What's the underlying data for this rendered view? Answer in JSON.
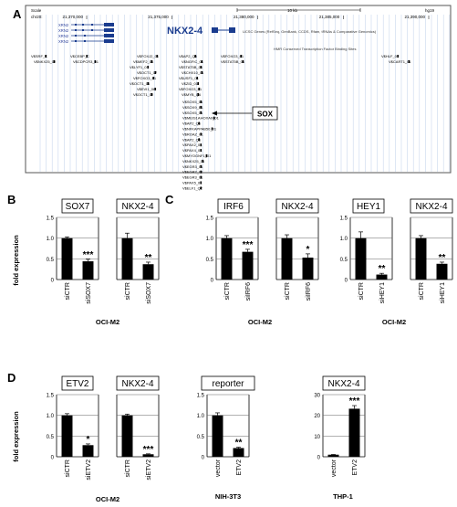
{
  "panel_a": {
    "letter": "A",
    "track": {
      "scale_label": "Scale",
      "scale_value": "10 kb",
      "assembly": "hg19",
      "chrom": "chr20:",
      "coords": [
        "21,370,000",
        "21,375,000",
        "21,380,000",
        "21,385,000",
        "21,390,000"
      ],
      "coord_values": [
        21370000,
        21375000,
        21380000,
        21385000,
        21390000
      ],
      "xrnr_labels": [
        "XRN2",
        "XRN2",
        "XRN2",
        "XRN2"
      ],
      "gene_label": "NKX2-4",
      "genes_track": "UCSC Genes (RefSeq, GenBank, CCDS, Rfam, tRNAs & Comparative Genomics)",
      "tfbs_track": "HMR Conserved Transcription Factor Binding Sites",
      "sox_label": "SOX",
      "gene_color": "#1a3c8f"
    },
    "tfbs": {
      "left": [
        "V$SRF_C",
        "V$NKX25_02"
      ],
      "left2": [
        "V$CEBP_C",
        "V$CDPCR3_01"
      ],
      "stack": [
        "V$FOXJ2_01",
        "V$MEF2_04",
        "V$LYF1_01",
        "V$OCT1_07",
        "V$FOXO3_01",
        "V$OCT1_04",
        "V$EVI1_06",
        "V$OCT1_02"
      ],
      "mid": [
        "V$AP2_Q6",
        "V$NGFIC_01",
        "V$STAT5B_01",
        "V$CHX10_01",
        "V$USF1_01",
        "V$ZID_01",
        "V$FOXO3_01",
        "V$MYB_Q6"
      ],
      "mid2": [
        "V$FOXO3_01",
        "V$STAT5B_01"
      ],
      "col": [
        "V$SOX5_01",
        "V$SOX9_B1",
        "V$SOX5_01",
        "V$MEIS1AHOXA9_01",
        "V$AP2_Q6",
        "V$NFKAPPAB50_01",
        "V$ROAZ_01",
        "V$AP2_Q6",
        "V$PAX2_01",
        "V$PAX4_01",
        "V$MYOGNF1_01",
        "V$NKX25_01",
        "V$EGR3_01",
        "V$EGR2_01",
        "V$EGR3_01",
        "V$PAX5_01",
        "V$ELF1_Q2"
      ],
      "right": [
        "V$HLF_01",
        "V$CART1_01"
      ]
    }
  },
  "panels": {
    "B": {
      "letter": "B",
      "xlabel": "OCI-M2",
      "ylabel": "fold expression"
    },
    "C": {
      "letter": "C",
      "xlabel": "OCI-M2"
    },
    "C2": {
      "xlabel": "OCI-M2"
    },
    "D": {
      "letter": "D",
      "xlabel": "OCI-M2",
      "ylabel": "fold expression"
    },
    "D2": {
      "xlabel": "NIH-3T3"
    },
    "D3": {
      "xlabel": "THP-1"
    }
  },
  "chart_data": [
    {
      "type": "bar",
      "panel": "B",
      "title": "SOX7",
      "ylabel": "fold expression",
      "categories": [
        "siCTR",
        "siSOX7"
      ],
      "values": [
        1.0,
        0.44
      ],
      "errors": [
        0.03,
        0.05
      ],
      "significance": [
        "",
        "***"
      ],
      "yticks": [
        "0",
        "0.5",
        "1.0",
        "1.5"
      ],
      "ylim": [
        0,
        1.5
      ]
    },
    {
      "type": "bar",
      "panel": "B",
      "title": "NKX2-4",
      "categories": [
        "siCTR",
        "siSOX7"
      ],
      "values": [
        1.0,
        0.37
      ],
      "errors": [
        0.12,
        0.05
      ],
      "significance": [
        "",
        "**"
      ],
      "ylim": [
        0,
        1.5
      ]
    },
    {
      "type": "bar",
      "panel": "C",
      "title": "IRF6",
      "categories": [
        "siCTR",
        "siIRF6"
      ],
      "values": [
        1.0,
        0.67
      ],
      "errors": [
        0.06,
        0.06
      ],
      "significance": [
        "",
        "***"
      ],
      "yticks": [
        "0",
        "0.5",
        "1.0",
        "1.5"
      ],
      "ylim": [
        0,
        1.5
      ]
    },
    {
      "type": "bar",
      "panel": "C",
      "title": "NKX2-4",
      "categories": [
        "siCTR",
        "siIRF6"
      ],
      "values": [
        1.0,
        0.53
      ],
      "errors": [
        0.08,
        0.09
      ],
      "significance": [
        "",
        "*"
      ],
      "ylim": [
        0,
        1.5
      ]
    },
    {
      "type": "bar",
      "panel": "C",
      "title": "HEY1",
      "categories": [
        "siCTR",
        "siHEY1"
      ],
      "values": [
        1.0,
        0.12
      ],
      "errors": [
        0.15,
        0.03
      ],
      "significance": [
        "",
        "**"
      ],
      "yticks": [
        "0",
        "0.5",
        "1.0",
        "1.5"
      ],
      "ylim": [
        0,
        1.5
      ]
    },
    {
      "type": "bar",
      "panel": "C",
      "title": "NKX2-4",
      "categories": [
        "siCTR",
        "siHEY1"
      ],
      "values": [
        1.0,
        0.38
      ],
      "errors": [
        0.06,
        0.04
      ],
      "significance": [
        "",
        "**"
      ],
      "ylim": [
        0,
        1.5
      ]
    },
    {
      "type": "bar",
      "panel": "D",
      "title": "ETV2",
      "ylabel": "fold expression",
      "categories": [
        "siCTR",
        "siETV2"
      ],
      "values": [
        1.0,
        0.28
      ],
      "errors": [
        0.04,
        0.03
      ],
      "significance": [
        "",
        "*"
      ],
      "yticks": [
        "0",
        "0.5",
        "1.0",
        "1.5"
      ],
      "ylim": [
        0,
        1.5
      ]
    },
    {
      "type": "bar",
      "panel": "D",
      "title": "NKX2-4",
      "categories": [
        "siCTR",
        "siETV2"
      ],
      "values": [
        1.0,
        0.06
      ],
      "errors": [
        0.03,
        0.01
      ],
      "significance": [
        "",
        "***"
      ],
      "ylim": [
        0,
        1.5
      ]
    },
    {
      "type": "bar",
      "panel": "D",
      "title": "reporter",
      "categories": [
        "vector",
        "ETV2"
      ],
      "values": [
        1.0,
        0.21
      ],
      "errors": [
        0.06,
        0.02
      ],
      "significance": [
        "",
        "**"
      ],
      "yticks": [
        "0",
        "0.5",
        "1.0",
        "1.5"
      ],
      "ylim": [
        0,
        1.5
      ]
    },
    {
      "type": "bar",
      "panel": "D",
      "title": "NKX2-4",
      "categories": [
        "vector",
        "ETV2"
      ],
      "values": [
        1.0,
        23.2
      ],
      "errors": [
        0.1,
        1.5
      ],
      "significance": [
        "",
        "***"
      ],
      "yticks": [
        "0",
        "10",
        "20",
        "30"
      ],
      "ylim": [
        0,
        30
      ]
    }
  ]
}
